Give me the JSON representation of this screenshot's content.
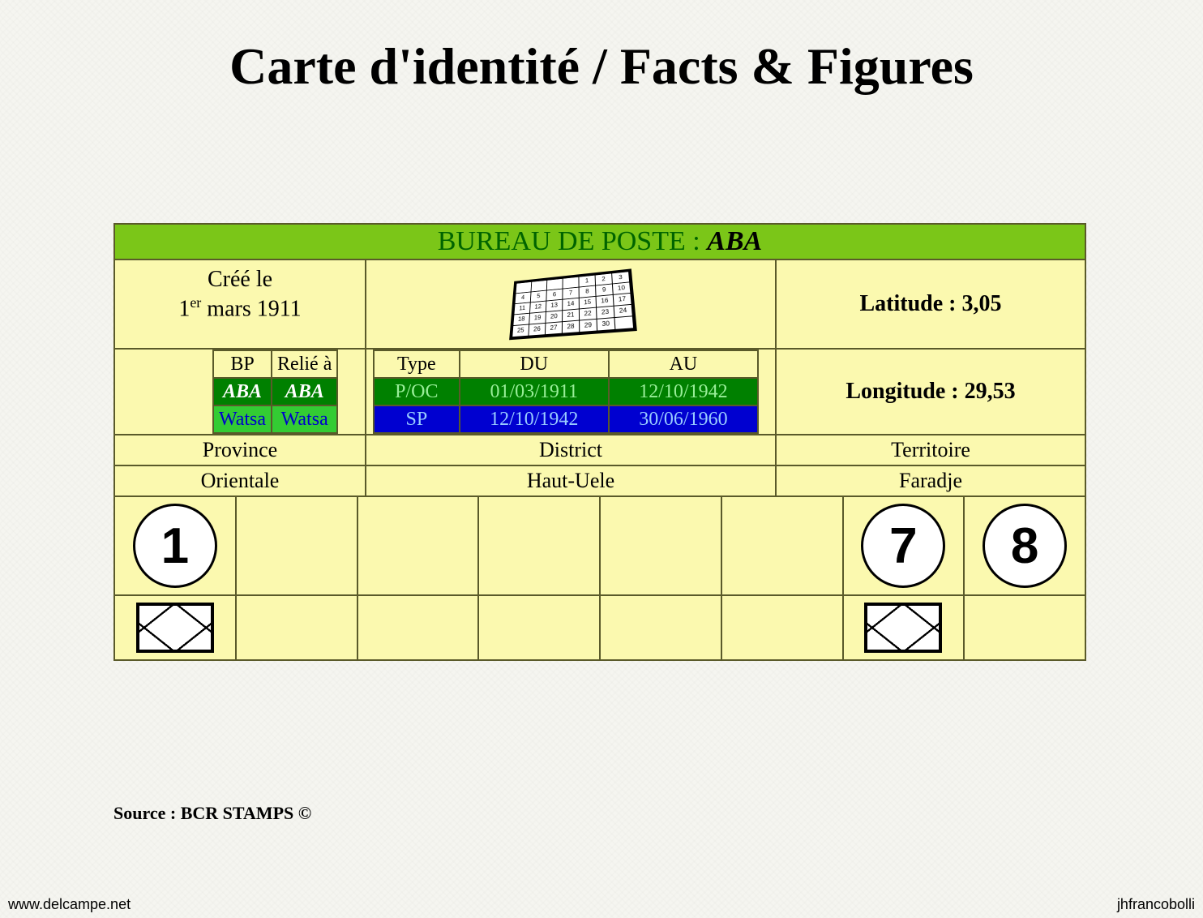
{
  "title": "Carte d'identité / Facts & Figures",
  "header": {
    "prefix": "BUREAU DE POSTE : ",
    "name": "ABA"
  },
  "creation": {
    "label": "Créé le",
    "value_prefix": "1",
    "value_super": "er",
    "value_suffix": " mars 1911"
  },
  "latitude_label": "Latitude : 3,05",
  "longitude_label": "Longitude : 29,53",
  "bp_table": {
    "headers": [
      "BP",
      "Relié à"
    ],
    "rows": [
      {
        "cells": [
          "ABA",
          "ABA"
        ],
        "style": "aba"
      },
      {
        "cells": [
          "Watsa",
          "Watsa"
        ],
        "style": "watsa"
      }
    ]
  },
  "type_table": {
    "headers": [
      "Type",
      "DU",
      "AU"
    ],
    "rows": [
      {
        "cells": [
          "P/OC",
          "01/03/1911",
          "12/10/1942"
        ],
        "style": "green"
      },
      {
        "cells": [
          "SP",
          "12/10/1942",
          "30/06/1960"
        ],
        "style": "blue"
      }
    ]
  },
  "geo": {
    "province_label": "Province",
    "province_value": "Orientale",
    "district_label": "District",
    "district_value": "Haut-Uele",
    "territoire_label": "Territoire",
    "territoire_value": "Faradje"
  },
  "circles": {
    "c1": "1",
    "c7": "7",
    "c8": "8"
  },
  "colors": {
    "card_bg": "#fbf9af",
    "border": "#5a5a2a",
    "header_bg": "#7bc618",
    "header_text": "#006400",
    "green_cell_bg": "#008000",
    "green_cell_fg": "#99ee99",
    "blue_cell_bg": "#0000d0",
    "blue_cell_fg": "#99ccff",
    "lime_cell_bg": "#33cc33",
    "lime_cell_fg": "#0000cc"
  },
  "source": "Source : BCR STAMPS ©",
  "footer_left": "www.delcampe.net",
  "footer_right": "jhfrancobolli"
}
